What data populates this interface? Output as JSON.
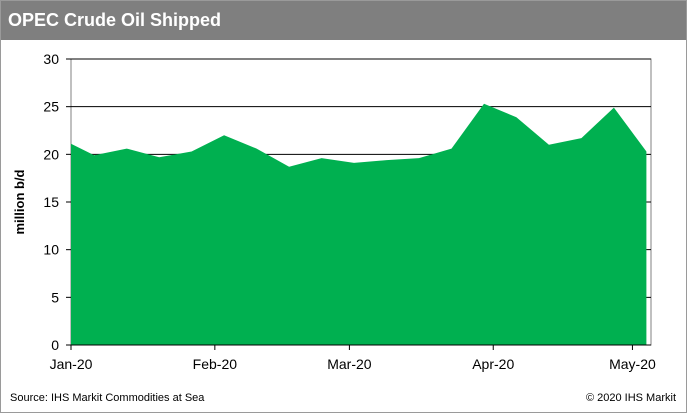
{
  "chart_data": {
    "type": "area",
    "title": "OPEC Crude Oil Shipped",
    "xlabel": "",
    "ylabel": "million b/d",
    "ylim": [
      0,
      30
    ],
    "yticks": [
      0,
      5,
      10,
      15,
      20,
      25,
      30
    ],
    "xtick_labels": [
      "Jan-20",
      "Feb-20",
      "Mar-20",
      "Apr-20",
      "May-20"
    ],
    "x_range": [
      "2020-01-01",
      "2020-05-05"
    ],
    "grid": true,
    "legend": "none",
    "fill_color": "#00b050",
    "series": [
      {
        "x": [
          "2020-01-01",
          "2020-01-06",
          "2020-01-13",
          "2020-01-20",
          "2020-01-27",
          "2020-02-03",
          "2020-02-10",
          "2020-02-17",
          "2020-02-24",
          "2020-03-02",
          "2020-03-09",
          "2020-03-16",
          "2020-03-23",
          "2020-03-30",
          "2020-04-06",
          "2020-04-13",
          "2020-04-20",
          "2020-04-27",
          "2020-05-04"
        ],
        "values": [
          21.1,
          19.9,
          20.6,
          19.7,
          20.3,
          22.0,
          20.6,
          18.7,
          19.6,
          19.1,
          19.4,
          19.6,
          20.6,
          25.3,
          23.9,
          21.0,
          21.7,
          24.9,
          20.3
        ]
      }
    ]
  },
  "footer": {
    "source": "Source: IHS Markit Commodities at Sea",
    "copyright": "© 2020 IHS Markit"
  }
}
